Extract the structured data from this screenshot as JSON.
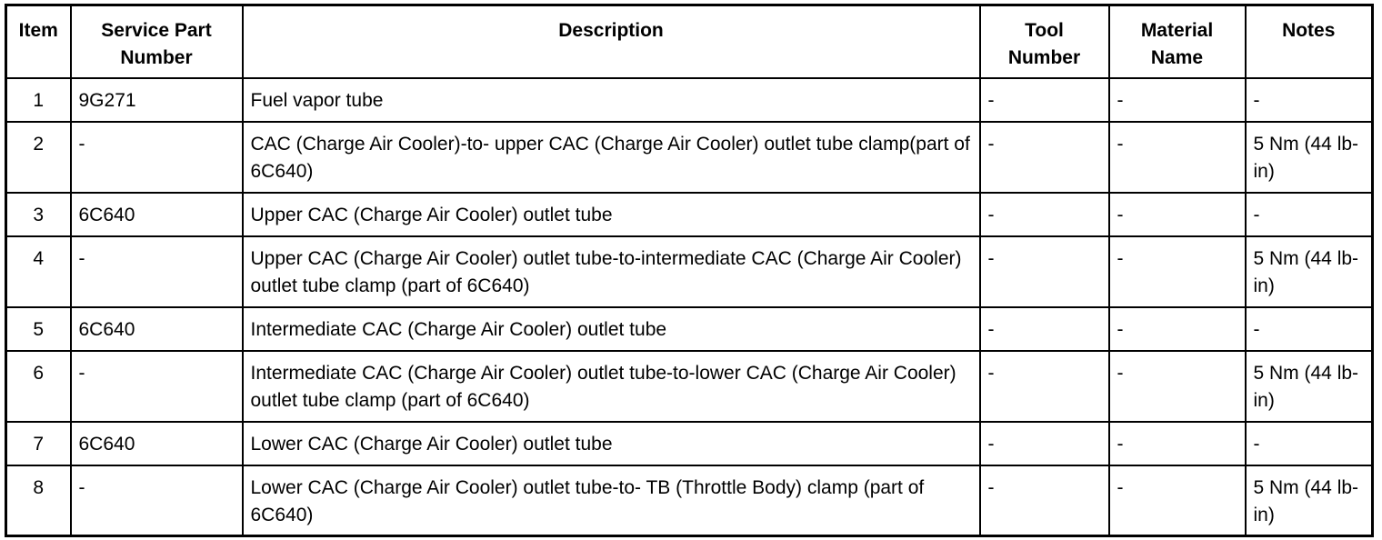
{
  "table": {
    "headers": [
      "Item",
      "Service Part Number",
      "Description",
      "Tool Number",
      "Material Name",
      "Notes"
    ],
    "header_lines": [
      [
        "Item"
      ],
      [
        "Service Part",
        "Number"
      ],
      [
        "Description"
      ],
      [
        "Tool",
        "Number"
      ],
      [
        "Material",
        "Name"
      ],
      [
        "Notes"
      ]
    ],
    "rows": [
      {
        "item": "1",
        "part": "9G271",
        "desc": "Fuel vapor tube",
        "tool": "-",
        "material": "-",
        "notes": "-"
      },
      {
        "item": "2",
        "part": "-",
        "desc": "CAC (Charge Air Cooler)-to- upper CAC (Charge Air Cooler) outlet tube clamp(part of 6C640)",
        "tool": "-",
        "material": "-",
        "notes": "5 Nm (44 lb-in)"
      },
      {
        "item": "3",
        "part": "6C640",
        "desc": "Upper CAC (Charge Air Cooler) outlet tube",
        "tool": "-",
        "material": "-",
        "notes": "-"
      },
      {
        "item": "4",
        "part": "-",
        "desc": "Upper CAC (Charge Air Cooler) outlet tube-to-intermediate CAC (Charge Air Cooler) outlet tube clamp (part of 6C640)",
        "tool": "-",
        "material": "-",
        "notes": "5 Nm (44 lb-in)"
      },
      {
        "item": "5",
        "part": "6C640",
        "desc": "Intermediate CAC (Charge Air Cooler) outlet tube",
        "tool": "-",
        "material": "-",
        "notes": "-"
      },
      {
        "item": "6",
        "part": "-",
        "desc": "Intermediate CAC (Charge Air Cooler) outlet tube-to-lower CAC (Charge Air Cooler) outlet tube clamp (part of 6C640)",
        "tool": "-",
        "material": "-",
        "notes": "5 Nm (44 lb-in)"
      },
      {
        "item": "7",
        "part": "6C640",
        "desc": "Lower CAC (Charge Air Cooler) outlet tube",
        "tool": "-",
        "material": "-",
        "notes": "-"
      },
      {
        "item": "8",
        "part": "-",
        "desc": "Lower CAC (Charge Air Cooler) outlet tube-to- TB (Throttle Body) clamp (part of 6C640)",
        "tool": "-",
        "material": "-",
        "notes": "5 Nm (44 lb-in)"
      }
    ]
  }
}
